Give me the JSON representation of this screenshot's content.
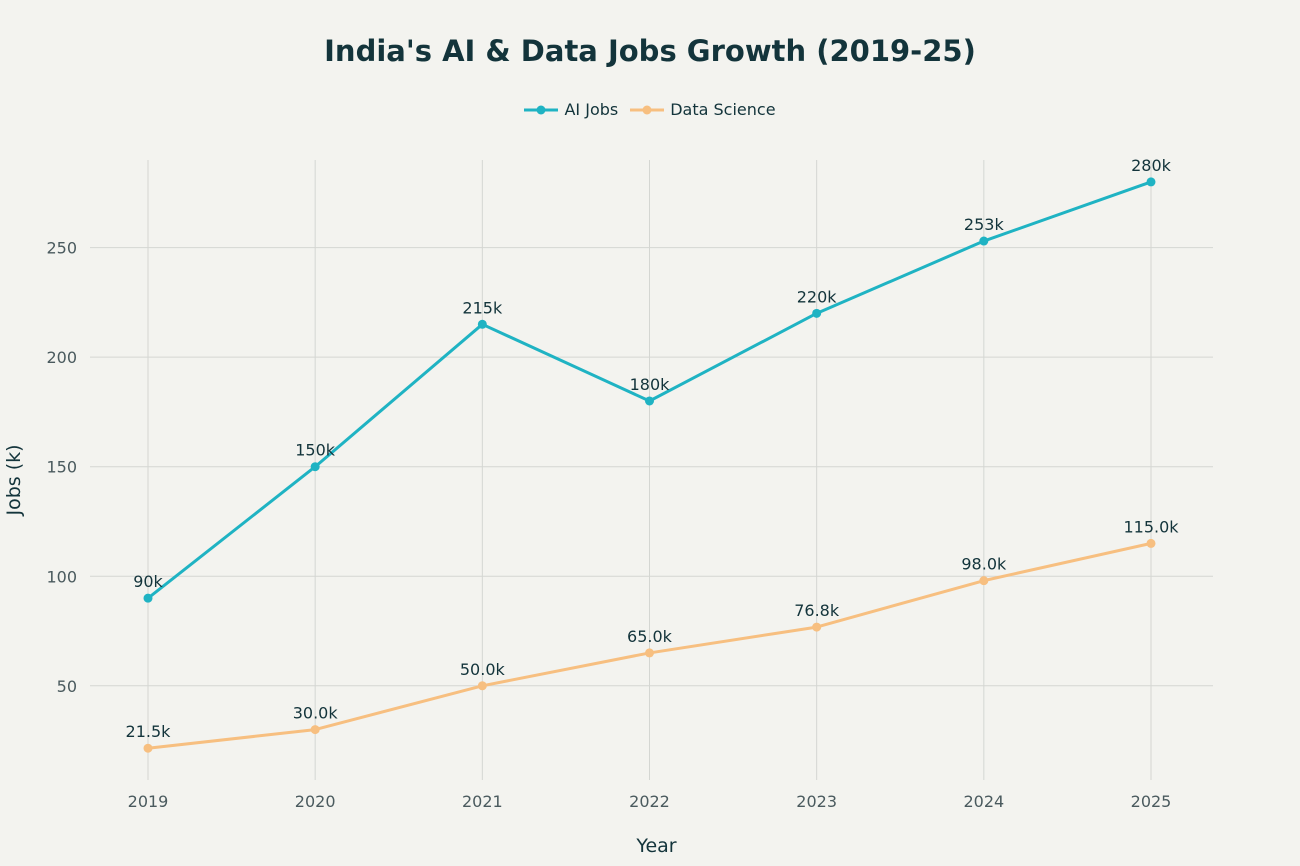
{
  "chart_data": {
    "type": "line",
    "title": "India's AI & Data Jobs Growth (2019-25)",
    "xlabel": "Year",
    "ylabel": "Jobs (k)",
    "categories": [
      "2019",
      "2020",
      "2021",
      "2022",
      "2023",
      "2024",
      "2025"
    ],
    "yticks": [
      50,
      100,
      150,
      200,
      250
    ],
    "ylim": [
      7,
      290
    ],
    "grid": true,
    "legend_position": "top-center",
    "series": [
      {
        "name": "AI Jobs",
        "color": "#1fb3c3",
        "values": [
          90,
          150,
          215,
          180,
          220,
          253,
          280
        ],
        "labels": [
          "90k",
          "150k",
          "215k",
          "180k",
          "220k",
          "253k",
          "280k"
        ]
      },
      {
        "name": "Data Science",
        "color": "#f7bf80",
        "values": [
          21.5,
          30.0,
          50.0,
          65.0,
          76.8,
          98.0,
          115.0
        ],
        "labels": [
          "21.5k",
          "30.0k",
          "50.0k",
          "65.0k",
          "76.8k",
          "98.0k",
          "115.0k"
        ]
      }
    ]
  }
}
